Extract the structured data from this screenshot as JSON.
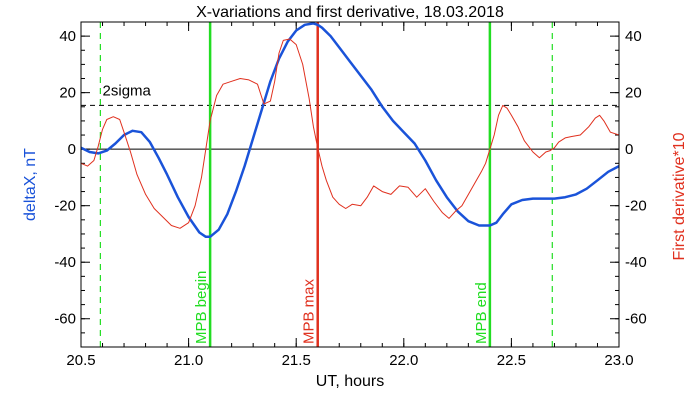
{
  "colors": {
    "blue": "#1a53d9",
    "red": "#e0301e",
    "green": "#22dd22",
    "black": "#000000"
  },
  "chart_data": {
    "type": "line",
    "title": "X-variations and first derivative, 18.03.2018",
    "xlabel": "UT, hours",
    "ylabel_left": "deltaX, nT",
    "ylabel_right": "First derivative*10",
    "xlim": [
      20.5,
      23.0
    ],
    "ylim": [
      -70,
      45
    ],
    "xticks": [
      20.5,
      21.0,
      21.5,
      22.0,
      22.5,
      23.0
    ],
    "xtick_labels": [
      "20.5",
      "21.0",
      "21.5",
      "22.0",
      "22.5",
      "23.0"
    ],
    "yticks": [
      -60,
      -40,
      -20,
      0,
      20,
      40
    ],
    "ytick_labels": [
      "-60",
      "-40",
      "-20",
      "0",
      "20",
      "40"
    ],
    "grid": false,
    "zero_line": 0,
    "threshold": {
      "label": "2sigma",
      "value": 15.5
    },
    "series": [
      {
        "name": "deltaX, nT",
        "axis": "left",
        "color": "#1a53d9",
        "x": [
          20.5,
          20.54,
          20.58,
          20.62,
          20.66,
          20.7,
          20.74,
          20.78,
          20.82,
          20.86,
          20.9,
          20.95,
          21.0,
          21.05,
          21.08,
          21.1,
          21.14,
          21.18,
          21.22,
          21.26,
          21.3,
          21.34,
          21.38,
          21.42,
          21.46,
          21.5,
          21.54,
          21.58,
          21.6,
          21.62,
          21.66,
          21.7,
          21.75,
          21.8,
          21.85,
          21.9,
          21.95,
          22.0,
          22.05,
          22.1,
          22.15,
          22.2,
          22.25,
          22.3,
          22.35,
          22.4,
          22.43,
          22.46,
          22.5,
          22.55,
          22.6,
          22.65,
          22.7,
          22.75,
          22.8,
          22.85,
          22.9,
          22.95,
          23.0
        ],
        "y": [
          0.5,
          -1.0,
          -1.5,
          -0.5,
          2.0,
          5.0,
          6.5,
          6.0,
          2.5,
          -3.0,
          -9.0,
          -17.0,
          -24.0,
          -29.5,
          -31.0,
          -31.0,
          -28.5,
          -23.0,
          -15.0,
          -6.0,
          4.0,
          14.0,
          24.0,
          32.0,
          38.0,
          42.0,
          44.0,
          44.5,
          44.0,
          43.0,
          40.0,
          36.0,
          31.0,
          26.0,
          21.0,
          15.0,
          10.0,
          6.0,
          2.0,
          -4.0,
          -11.0,
          -17.0,
          -22.0,
          -25.5,
          -27.0,
          -27.0,
          -26.0,
          -23.0,
          -19.5,
          -18.0,
          -17.5,
          -17.5,
          -17.5,
          -17.0,
          -16.0,
          -14.0,
          -11.0,
          -8.0,
          -6.0
        ]
      },
      {
        "name": "First derivative*10",
        "axis": "right",
        "color": "#e0301e",
        "x": [
          20.5,
          20.53,
          20.56,
          20.58,
          20.6,
          20.62,
          20.65,
          20.68,
          20.7,
          20.73,
          20.76,
          20.8,
          20.84,
          20.88,
          20.92,
          20.96,
          21.0,
          21.03,
          21.06,
          21.08,
          21.1,
          21.13,
          21.16,
          21.2,
          21.24,
          21.28,
          21.32,
          21.35,
          21.38,
          21.4,
          21.42,
          21.44,
          21.47,
          21.5,
          21.53,
          21.56,
          21.58,
          21.6,
          21.62,
          21.64,
          21.67,
          21.7,
          21.73,
          21.76,
          21.8,
          21.83,
          21.86,
          21.9,
          21.94,
          21.98,
          22.02,
          22.06,
          22.1,
          22.14,
          22.18,
          22.21,
          22.24,
          22.27,
          22.3,
          22.33,
          22.36,
          22.38,
          22.4,
          22.42,
          22.44,
          22.46,
          22.48,
          22.5,
          22.53,
          22.56,
          22.6,
          22.63,
          22.66,
          22.68,
          22.7,
          22.72,
          22.75,
          22.78,
          22.82,
          22.86,
          22.89,
          22.91,
          22.93,
          22.96,
          23.0
        ],
        "y": [
          -5.0,
          -6.0,
          -4.0,
          1.0,
          7.0,
          10.5,
          11.5,
          10.5,
          6.0,
          -1.0,
          -9.0,
          -16.0,
          -21.0,
          -24.0,
          -27.0,
          -28.0,
          -26.0,
          -20.0,
          -10.0,
          0.0,
          10.0,
          19.0,
          23.0,
          24.0,
          25.0,
          24.5,
          23.0,
          16.0,
          17.0,
          24.0,
          34.0,
          38.5,
          39.0,
          37.0,
          30.0,
          18.0,
          8.0,
          0.5,
          -6.0,
          -11.0,
          -17.0,
          -19.5,
          -21.0,
          -19.5,
          -20.0,
          -17.0,
          -13.0,
          -15.0,
          -16.0,
          -13.0,
          -13.5,
          -17.0,
          -14.0,
          -18.5,
          -22.5,
          -24.5,
          -22.0,
          -20.0,
          -16.0,
          -12.0,
          -8.0,
          -5.0,
          0.0,
          5.0,
          12.0,
          15.5,
          14.5,
          12.0,
          8.0,
          3.0,
          -1.0,
          -3.0,
          -1.0,
          -0.5,
          0.5,
          2.5,
          4.0,
          4.5,
          5.0,
          8.0,
          11.0,
          12.0,
          10.0,
          6.0,
          5.0
        ]
      }
    ],
    "markers": [
      {
        "label": "MPB begin",
        "x": 21.1,
        "color": "#22dd22",
        "style": "solid"
      },
      {
        "label": "MPB max",
        "x": 21.6,
        "color": "#e0301e",
        "style": "solid"
      },
      {
        "label": "MPB end",
        "x": 22.4,
        "color": "#22dd22",
        "style": "solid"
      },
      {
        "label": "",
        "x": 20.59,
        "color": "#22dd22",
        "style": "dashed"
      },
      {
        "label": "",
        "x": 22.69,
        "color": "#22dd22",
        "style": "dashed"
      }
    ]
  }
}
